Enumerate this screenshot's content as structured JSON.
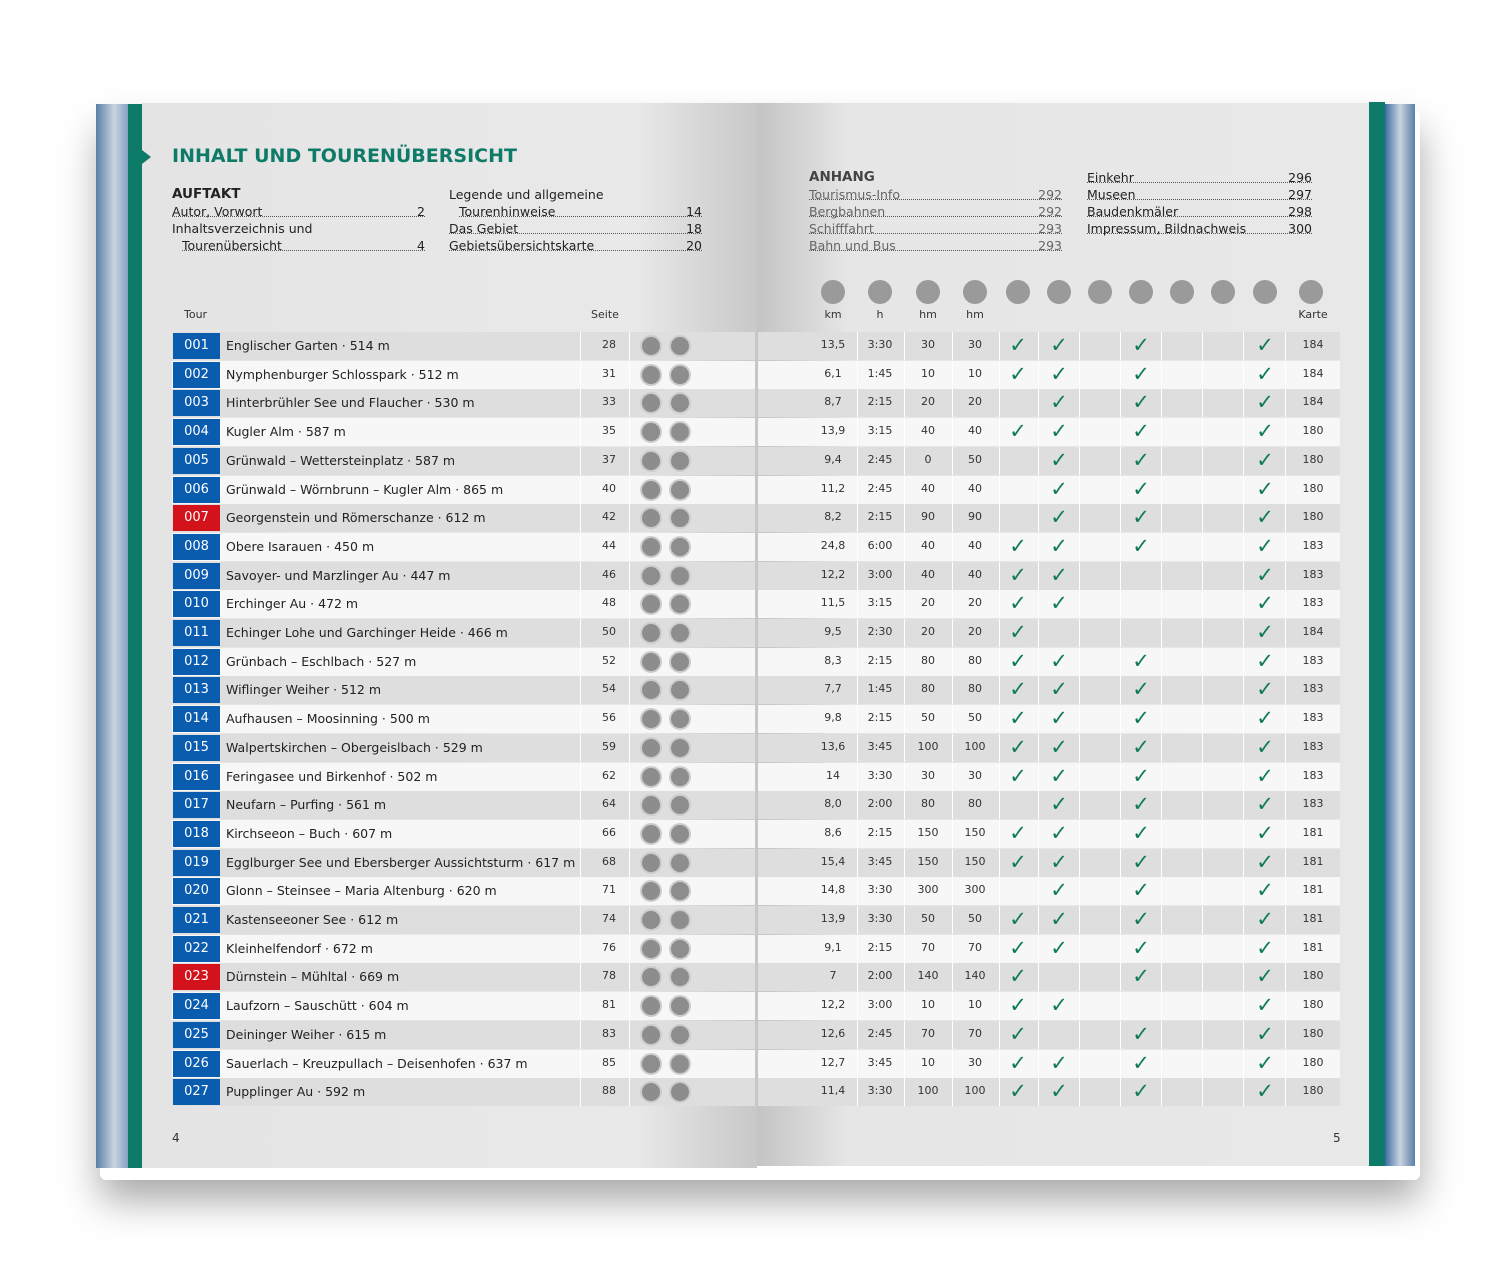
{
  "left_page": {
    "title": "INHALT UND TOURENÜBERSICHT",
    "section": "AUFTAKT",
    "toc_col1": [
      {
        "label": "Autor, Vorwort",
        "page": 2
      },
      {
        "label": "Inhaltsverzeichnis und",
        "label2": "Tourenübersicht",
        "page": 4
      }
    ],
    "toc_col2": [
      {
        "label": "Legende und allgemeine",
        "label2": "Tourenhinweise",
        "page": 14
      },
      {
        "label": "Das Gebiet",
        "page": 18
      },
      {
        "label": "Gebietsübersichtskarte",
        "page": 20
      }
    ],
    "header_tour": "Tour",
    "header_seite": "Seite",
    "page_number": 4
  },
  "right_page": {
    "section": "ANHANG",
    "toc_col1": [
      {
        "label": "Tourismus-Info",
        "page": 292
      },
      {
        "label": "Bergbahnen",
        "page": 292
      },
      {
        "label": "Schifffahrt",
        "page": 293
      },
      {
        "label": "Bahn und Bus",
        "page": 293
      }
    ],
    "toc_col2": [
      {
        "label": "Einkehr",
        "page": 296
      },
      {
        "label": "Museen",
        "page": 297
      },
      {
        "label": "Baudenkmäler",
        "page": 298
      },
      {
        "label": "Impressum, Bildnachweis",
        "page": 300
      }
    ],
    "headers": [
      "km",
      "h",
      "hm",
      "hm"
    ],
    "header_karte": "Karte",
    "page_number": 5,
    "check_color": "#0f7a5c"
  },
  "rows": [
    {
      "tour": "001",
      "name": "Englischer Garten · 514 m",
      "seite": 28,
      "color": "#0a5cae",
      "km": "13,5",
      "h": "3:30",
      "hm_up": 30,
      "hm_down": 30,
      "checks": [
        "✓",
        "✓",
        null,
        "✓",
        null,
        null,
        "✓"
      ],
      "karte": 184
    },
    {
      "tour": "002",
      "name": "Nymphenburger Schlosspark · 512 m",
      "seite": 31,
      "color": "#0a5cae",
      "km": "6,1",
      "h": "1:45",
      "hm_up": 10,
      "hm_down": 10,
      "checks": [
        "✓",
        "✓",
        null,
        "✓",
        null,
        null,
        "✓"
      ],
      "karte": 184
    },
    {
      "tour": "003",
      "name": "Hinterbrühler See und Flaucher · 530 m",
      "seite": 33,
      "color": "#0a5cae",
      "km": "8,7",
      "h": "2:15",
      "hm_up": 20,
      "hm_down": 20,
      "checks": [
        null,
        "✓",
        null,
        "✓",
        null,
        null,
        "✓"
      ],
      "karte": 184
    },
    {
      "tour": "004",
      "name": "Kugler Alm · 587 m",
      "seite": 35,
      "color": "#0a5cae",
      "km": "13,9",
      "h": "3:15",
      "hm_up": 40,
      "hm_down": 40,
      "checks": [
        "✓",
        "✓",
        null,
        "✓",
        null,
        null,
        "✓"
      ],
      "karte": 180
    },
    {
      "tour": "005",
      "name": "Grünwald – Wettersteinplatz · 587 m",
      "seite": 37,
      "color": "#0a5cae",
      "km": "9,4",
      "h": "2:45",
      "hm_up": 0,
      "hm_down": 50,
      "checks": [
        null,
        "✓",
        null,
        "✓",
        null,
        null,
        "✓"
      ],
      "karte": 180
    },
    {
      "tour": "006",
      "name": "Grünwald – Wörnbrunn – Kugler Alm · 865 m",
      "seite": 40,
      "color": "#0a5cae",
      "km": "11,2",
      "h": "2:45",
      "hm_up": 40,
      "hm_down": 40,
      "checks": [
        null,
        "✓",
        null,
        "✓",
        null,
        null,
        "✓"
      ],
      "karte": 180
    },
    {
      "tour": "007",
      "name": "Georgenstein und Römerschanze · 612 m",
      "seite": 42,
      "color": "#d3121b",
      "km": "8,2",
      "h": "2:15",
      "hm_up": 90,
      "hm_down": 90,
      "checks": [
        null,
        "✓",
        null,
        "✓",
        null,
        null,
        "✓"
      ],
      "karte": 180
    },
    {
      "tour": "008",
      "name": "Obere Isarauen · 450 m",
      "seite": 44,
      "color": "#0a5cae",
      "km": "24,8",
      "h": "6:00",
      "hm_up": 40,
      "hm_down": 40,
      "checks": [
        "✓",
        "✓",
        null,
        "✓",
        null,
        null,
        "✓"
      ],
      "karte": 183
    },
    {
      "tour": "009",
      "name": "Savoyer- und Marzlinger Au · 447 m",
      "seite": 46,
      "color": "#0a5cae",
      "km": "12,2",
      "h": "3:00",
      "hm_up": 40,
      "hm_down": 40,
      "checks": [
        "✓",
        "✓",
        null,
        null,
        null,
        null,
        "✓"
      ],
      "karte": 183
    },
    {
      "tour": "010",
      "name": "Erchinger Au · 472 m",
      "seite": 48,
      "color": "#0a5cae",
      "km": "11,5",
      "h": "3:15",
      "hm_up": 20,
      "hm_down": 20,
      "checks": [
        "✓",
        "✓",
        null,
        null,
        null,
        null,
        "✓"
      ],
      "karte": 183
    },
    {
      "tour": "011",
      "name": "Echinger Lohe und Garchinger Heide · 466 m",
      "seite": 50,
      "color": "#0a5cae",
      "km": "9,5",
      "h": "2:30",
      "hm_up": 20,
      "hm_down": 20,
      "checks": [
        "✓",
        null,
        null,
        null,
        null,
        null,
        "✓"
      ],
      "karte": 184
    },
    {
      "tour": "012",
      "name": "Grünbach – Eschlbach · 527 m",
      "seite": 52,
      "color": "#0a5cae",
      "km": "8,3",
      "h": "2:15",
      "hm_up": 80,
      "hm_down": 80,
      "checks": [
        "✓",
        "✓",
        null,
        "✓",
        null,
        null,
        "✓"
      ],
      "karte": 183
    },
    {
      "tour": "013",
      "name": "Wiflinger Weiher · 512 m",
      "seite": 54,
      "color": "#0a5cae",
      "km": "7,7",
      "h": "1:45",
      "hm_up": 80,
      "hm_down": 80,
      "checks": [
        "✓",
        "✓",
        null,
        "✓",
        null,
        null,
        "✓"
      ],
      "karte": 183
    },
    {
      "tour": "014",
      "name": "Aufhausen – Moosinning · 500 m",
      "seite": 56,
      "color": "#0a5cae",
      "km": "9,8",
      "h": "2:15",
      "hm_up": 50,
      "hm_down": 50,
      "checks": [
        "✓",
        "✓",
        null,
        "✓",
        null,
        null,
        "✓"
      ],
      "karte": 183
    },
    {
      "tour": "015",
      "name": "Walpertskirchen – Obergeislbach · 529 m",
      "seite": 59,
      "color": "#0a5cae",
      "km": "13,6",
      "h": "3:45",
      "hm_up": 100,
      "hm_down": 100,
      "checks": [
        "✓",
        "✓",
        null,
        "✓",
        null,
        null,
        "✓"
      ],
      "karte": 183
    },
    {
      "tour": "016",
      "name": "Feringasee und Birkenhof · 502 m",
      "seite": 62,
      "color": "#0a5cae",
      "km": "14",
      "h": "3:30",
      "hm_up": 30,
      "hm_down": 30,
      "checks": [
        "✓",
        "✓",
        null,
        "✓",
        null,
        null,
        "✓"
      ],
      "karte": 183
    },
    {
      "tour": "017",
      "name": "Neufarn – Purfing · 561 m",
      "seite": 64,
      "color": "#0a5cae",
      "km": "8,0",
      "h": "2:00",
      "hm_up": 80,
      "hm_down": 80,
      "checks": [
        null,
        "✓",
        null,
        "✓",
        null,
        null,
        "✓"
      ],
      "karte": 183
    },
    {
      "tour": "018",
      "name": "Kirchseeon – Buch · 607 m",
      "seite": 66,
      "color": "#0a5cae",
      "km": "8,6",
      "h": "2:15",
      "hm_up": 150,
      "hm_down": 150,
      "checks": [
        "✓",
        "✓",
        null,
        "✓",
        null,
        null,
        "✓"
      ],
      "karte": 181
    },
    {
      "tour": "019",
      "name": "Egglburger See und Ebersberger Aussichtsturm · 617 m",
      "seite": 68,
      "color": "#0a5cae",
      "km": "15,4",
      "h": "3:45",
      "hm_up": 150,
      "hm_down": 150,
      "checks": [
        "✓",
        "✓",
        null,
        "✓",
        null,
        null,
        "✓"
      ],
      "karte": 181
    },
    {
      "tour": "020",
      "name": "Glonn – Steinsee – Maria Altenburg · 620 m",
      "seite": 71,
      "color": "#0a5cae",
      "km": "14,8",
      "h": "3:30",
      "hm_up": 300,
      "hm_down": 300,
      "checks": [
        null,
        "✓",
        null,
        "✓",
        null,
        null,
        "✓"
      ],
      "karte": 181
    },
    {
      "tour": "021",
      "name": "Kastenseeoner See · 612 m",
      "seite": 74,
      "color": "#0a5cae",
      "km": "13,9",
      "h": "3:30",
      "hm_up": 50,
      "hm_down": 50,
      "checks": [
        "✓",
        "✓",
        null,
        "✓",
        null,
        null,
        "✓"
      ],
      "karte": 181
    },
    {
      "tour": "022",
      "name": "Kleinhelfendorf · 672 m",
      "seite": 76,
      "color": "#0a5cae",
      "km": "9,1",
      "h": "2:15",
      "hm_up": 70,
      "hm_down": 70,
      "checks": [
        "✓",
        "✓",
        null,
        "✓",
        null,
        null,
        "✓"
      ],
      "karte": 181
    },
    {
      "tour": "023",
      "name": "Dürnstein – Mühltal · 669 m",
      "seite": 78,
      "color": "#d3121b",
      "km": "7",
      "h": "2:00",
      "hm_up": 140,
      "hm_down": 140,
      "checks": [
        "✓",
        null,
        null,
        "✓",
        null,
        null,
        "✓"
      ],
      "karte": 180
    },
    {
      "tour": "024",
      "name": "Laufzorn – Sauschütt · 604 m",
      "seite": 81,
      "color": "#0a5cae",
      "km": "12,2",
      "h": "3:00",
      "hm_up": 10,
      "hm_down": 10,
      "checks": [
        "✓",
        "✓",
        null,
        null,
        null,
        null,
        "✓"
      ],
      "karte": 180
    },
    {
      "tour": "025",
      "name": "Deininger Weiher · 615 m",
      "seite": 83,
      "color": "#0a5cae",
      "km": "12,6",
      "h": "2:45",
      "hm_up": 70,
      "hm_down": 70,
      "checks": [
        "✓",
        null,
        null,
        "✓",
        null,
        null,
        "✓"
      ],
      "karte": 180
    },
    {
      "tour": "026",
      "name": "Sauerlach – Kreuzpullach – Deisenhofen · 637 m",
      "seite": 85,
      "color": "#0a5cae",
      "km": "12,7",
      "h": "3:45",
      "hm_up": 10,
      "hm_down": 30,
      "checks": [
        "✓",
        "✓",
        null,
        "✓",
        null,
        null,
        "✓"
      ],
      "karte": 180
    },
    {
      "tour": "027",
      "name": "Pupplinger Au · 592 m",
      "seite": 88,
      "color": "#0a5cae",
      "km": "11,4",
      "h": "3:30",
      "hm_up": 100,
      "hm_down": 100,
      "checks": [
        "✓",
        "✓",
        null,
        "✓",
        null,
        null,
        "✓"
      ],
      "karte": 180
    }
  ]
}
